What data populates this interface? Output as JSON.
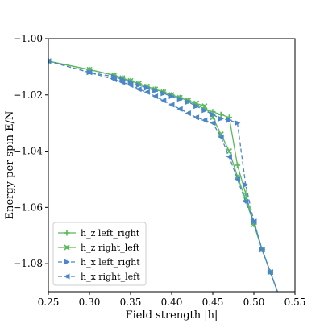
{
  "chart_data": {
    "type": "line",
    "xlabel": "Field strength |h|",
    "ylabel": "Energy per spin E/N",
    "xlim": [
      0.25,
      0.55
    ],
    "ylim": [
      -1.09,
      -1.0
    ],
    "x_ticks": [
      0.25,
      0.3,
      0.35,
      0.4,
      0.45,
      0.5,
      0.55
    ],
    "x_tick_labels": [
      "0.25",
      "0.30",
      "0.35",
      "0.40",
      "0.45",
      "0.50",
      "0.55"
    ],
    "y_ticks": [
      -1.0,
      -1.02,
      -1.04,
      -1.06,
      -1.08
    ],
    "y_tick_labels": [
      "−1.00",
      "−1.02",
      "−1.04",
      "−1.06",
      "−1.08"
    ],
    "grid": false,
    "legend_position": "lower-left",
    "series": [
      {
        "name": "h_z left_right",
        "color": "#5cb85c",
        "style": "solid",
        "marker": "plus",
        "x": [
          0.25,
          0.3,
          0.33,
          0.34,
          0.35,
          0.36,
          0.37,
          0.38,
          0.39,
          0.4,
          0.41,
          0.42,
          0.43,
          0.44,
          0.45,
          0.46,
          0.47,
          0.48,
          0.49,
          0.5,
          0.51,
          0.52,
          0.53
        ],
        "y": [
          -1.008,
          -1.011,
          -1.013,
          -1.014,
          -1.015,
          -1.016,
          -1.017,
          -1.018,
          -1.019,
          -1.02,
          -1.021,
          -1.022,
          -1.0235,
          -1.025,
          -1.026,
          -1.027,
          -1.028,
          -1.045,
          -1.055,
          -1.066,
          -1.075,
          -1.083,
          -1.091
        ]
      },
      {
        "name": "h_z right_left",
        "color": "#5cb85c",
        "style": "solid",
        "marker": "cross",
        "x": [
          0.25,
          0.3,
          0.33,
          0.34,
          0.35,
          0.36,
          0.37,
          0.38,
          0.39,
          0.4,
          0.41,
          0.42,
          0.43,
          0.44,
          0.45,
          0.46,
          0.47,
          0.48,
          0.49,
          0.5,
          0.51,
          0.52,
          0.53
        ],
        "y": [
          -1.008,
          -1.011,
          -1.013,
          -1.014,
          -1.015,
          -1.016,
          -1.017,
          -1.018,
          -1.019,
          -1.02,
          -1.021,
          -1.022,
          -1.023,
          -1.024,
          -1.028,
          -1.034,
          -1.04,
          -1.049,
          -1.057,
          -1.066,
          -1.075,
          -1.083,
          -1.091
        ]
      },
      {
        "name": "h_x left_right",
        "color": "#4a86c8",
        "style": "dashed",
        "marker": "triangle-right",
        "x": [
          0.25,
          0.3,
          0.33,
          0.34,
          0.35,
          0.36,
          0.37,
          0.38,
          0.39,
          0.4,
          0.41,
          0.42,
          0.43,
          0.44,
          0.45,
          0.46,
          0.47,
          0.48,
          0.49,
          0.5,
          0.51,
          0.52,
          0.53
        ],
        "y": [
          -1.008,
          -1.012,
          -1.0135,
          -1.0145,
          -1.0155,
          -1.0165,
          -1.0175,
          -1.0185,
          -1.0195,
          -1.0205,
          -1.0215,
          -1.0225,
          -1.024,
          -1.0255,
          -1.027,
          -1.0285,
          -1.029,
          -1.03,
          -1.052,
          -1.065,
          -1.075,
          -1.083,
          -1.091
        ]
      },
      {
        "name": "h_x right_left",
        "color": "#4a86c8",
        "style": "dashed",
        "marker": "triangle-left",
        "x": [
          0.25,
          0.3,
          0.33,
          0.34,
          0.35,
          0.36,
          0.37,
          0.38,
          0.39,
          0.4,
          0.41,
          0.42,
          0.43,
          0.44,
          0.45,
          0.46,
          0.47,
          0.48,
          0.49,
          0.5,
          0.51,
          0.52,
          0.53
        ],
        "y": [
          -1.008,
          -1.012,
          -1.0145,
          -1.0155,
          -1.0165,
          -1.018,
          -1.019,
          -1.0205,
          -1.022,
          -1.0235,
          -1.025,
          -1.0265,
          -1.028,
          -1.029,
          -1.03,
          -1.035,
          -1.042,
          -1.05,
          -1.058,
          -1.065,
          -1.075,
          -1.083,
          -1.091
        ]
      }
    ]
  }
}
